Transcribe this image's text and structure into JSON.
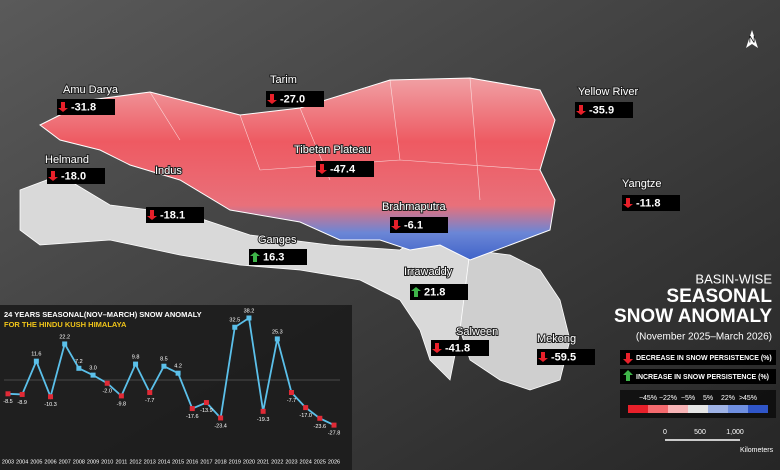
{
  "header": {
    "kicker": "BASIN-WISE",
    "title_1": "SEASONAL",
    "title_2": "SNOW ANOMALY",
    "period": "(November 2025–March 2026)"
  },
  "north": "N",
  "basins": {
    "names": [
      "Amu Darya",
      "Tarim",
      "Yellow River",
      "Helmand",
      "Tibetan Plateau",
      "Indus",
      "Yangtze",
      "Brahmaputra",
      "Ganges",
      "Irrawaddy",
      "Salween",
      "Mekong"
    ],
    "values": [
      -31.8,
      -27,
      -35.9,
      -18,
      -47.4,
      -18.1,
      -11.8,
      -6.1,
      16.3,
      21.8,
      -41.8,
      -59.5
    ],
    "value_labels": [
      "-31.8",
      "-27.0",
      "-35.9",
      "-18.0",
      "-47.4",
      "-18.1",
      "-11.8",
      "-6.1",
      "16.3",
      "21.8",
      "-41.8",
      "-59.5"
    ]
  },
  "legend": {
    "decrease": "DECREASE IN SNOW PERSISTENCE (%)",
    "increase": "INCREASE IN SNOW PERSISTENCE (%)",
    "scale_labels": [
      "−45%",
      "−22%",
      "−5%",
      "5%",
      "22%",
      ">45%"
    ],
    "scale_colors": [
      "#e8202a",
      "#f46a6e",
      "#f8b4b6",
      "#e6e6e6",
      "#9fb3e6",
      "#6f8fe0",
      "#2f55c8"
    ]
  },
  "scale_bar": {
    "ticks": [
      "0",
      "500",
      "1,000"
    ],
    "unit": "Kilometers"
  },
  "chart_data": {
    "type": "line",
    "title_1": "24 YEARS SEASONAL(NOV–MARCH) SNOW ANOMALY",
    "title_2": "FOR THE HINDU KUSH HIMALAYA",
    "categories": [
      "2003",
      "2004",
      "2005",
      "2006",
      "2007",
      "2008",
      "2009",
      "2010",
      "2011",
      "2012",
      "2013",
      "2014",
      "2015",
      "2016",
      "2017",
      "2018",
      "2019",
      "2020",
      "2021",
      "2022",
      "2023",
      "2024",
      "2025",
      "2026"
    ],
    "values": [
      -8.5,
      -8.9,
      11.6,
      -10.3,
      22.2,
      7.2,
      3,
      -2,
      -9.8,
      9.8,
      -7.7,
      8.5,
      4.2,
      -17.6,
      -13.9,
      -23.4,
      32.5,
      38.2,
      -19.3,
      25.3,
      -7.7,
      -17,
      -23.6,
      -27.8
    ],
    "value_labels": [
      "-8.5",
      "-8.9",
      "11.6",
      "-10.3",
      "22.2",
      "7.2",
      "3.0",
      "-2.0",
      "-9.8",
      "9.8",
      "-7.7",
      "8.5",
      "4.2",
      "-17.6",
      "-13.9",
      "-23.4",
      "32.5",
      "38.2",
      "-19.3",
      "25.3",
      "-7.7",
      "-17.0",
      "-23.6",
      "-27.8"
    ],
    "line_color": "#5bc0ea",
    "positive_color": "#5bc0ea",
    "negative_color": "#e02a36"
  }
}
